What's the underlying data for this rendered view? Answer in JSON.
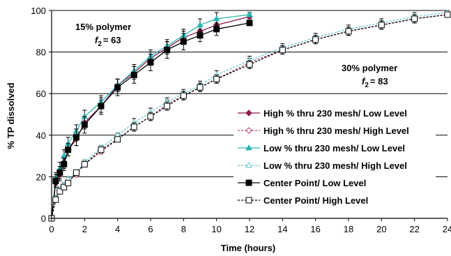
{
  "chart_data": {
    "type": "line",
    "xlabel": "Time (hours)",
    "ylabel": "% TP dissolved",
    "xlim": [
      0,
      24
    ],
    "ylim": [
      0,
      100
    ],
    "x_ticks": [
      0,
      2,
      4,
      6,
      8,
      10,
      12,
      14,
      16,
      18,
      20,
      22,
      24
    ],
    "y_ticks": [
      0,
      20,
      40,
      60,
      80,
      100
    ],
    "grid": "horizontal",
    "legend_position": "right",
    "annotations": [
      {
        "line1": "15% polymer",
        "f_sym": "f",
        "f_sub": "2",
        "f_val": "= 63"
      },
      {
        "line1": "30% polymer",
        "f_sym": "f",
        "f_sub": "2",
        "f_val": "= 83"
      }
    ],
    "series": [
      {
        "name": "High % thru 230 mesh/ Low Level",
        "color": "#8B1A4A",
        "marker": "diamond",
        "filled": true,
        "dashed": false,
        "x": [
          0,
          0.25,
          0.5,
          0.75,
          1,
          1.5,
          2,
          3,
          4,
          5,
          6,
          7,
          8,
          9,
          10,
          12
        ],
        "y": [
          0,
          17,
          21,
          27,
          33,
          38,
          46,
          54,
          64,
          70,
          77,
          82,
          87,
          90,
          93,
          97
        ],
        "err": [
          0,
          2,
          3,
          3,
          3,
          3,
          3,
          3,
          3,
          3,
          3,
          3,
          3,
          3,
          3,
          1
        ]
      },
      {
        "name": "High % thru 230 mesh/ High Level",
        "color": "#B0407A",
        "marker": "diamond",
        "filled": false,
        "dashed": true,
        "x": [
          0,
          0.25,
          0.5,
          0.75,
          1,
          1.5,
          2,
          3,
          4,
          5,
          6,
          7,
          8,
          9,
          10,
          12,
          14,
          16,
          18,
          20,
          22,
          24
        ],
        "y": [
          0,
          9,
          13,
          15,
          18,
          21,
          26,
          32,
          38,
          44,
          49,
          55,
          59,
          63,
          67,
          75,
          81,
          86,
          90,
          93,
          96,
          98
        ],
        "err": [
          0,
          1,
          1,
          1,
          1,
          1,
          1,
          1,
          1,
          2,
          2,
          2,
          2,
          2,
          2,
          2,
          2,
          2,
          2,
          2,
          2,
          1
        ]
      },
      {
        "name": "Low % thru 230 mesh/ Low Level",
        "color": "#2BB5B0",
        "marker": "triangle",
        "filled": true,
        "dashed": false,
        "x": [
          0,
          0.25,
          0.5,
          0.75,
          1,
          1.5,
          2,
          3,
          4,
          5,
          6,
          7,
          8,
          9,
          10,
          12
        ],
        "y": [
          0,
          19,
          24,
          30,
          36,
          42,
          49,
          56,
          64,
          71,
          78,
          83,
          88,
          93,
          96,
          98
        ],
        "err": [
          0,
          3,
          3,
          3,
          3,
          3,
          3,
          3,
          3,
          3,
          3,
          3,
          3,
          3,
          3,
          1
        ]
      },
      {
        "name": "Low % thru 230 mesh/ High Level",
        "color": "#5FC8D0",
        "marker": "triangle",
        "filled": false,
        "dashed": true,
        "x": [
          0,
          0.25,
          0.5,
          0.75,
          1,
          1.5,
          2,
          3,
          4,
          5,
          6,
          7,
          8,
          9,
          10,
          12,
          14,
          16,
          18,
          20,
          22,
          24
        ],
        "y": [
          0,
          10,
          14,
          16,
          19,
          22,
          27,
          34,
          40,
          46,
          51,
          56,
          60,
          64,
          69,
          76,
          82,
          87,
          91,
          94,
          97,
          99
        ],
        "err": [
          0,
          1,
          1,
          1,
          1,
          1,
          1,
          1,
          1,
          2,
          2,
          2,
          2,
          2,
          2,
          2,
          2,
          2,
          2,
          2,
          2,
          1
        ]
      },
      {
        "name": "Center Point/ Low Level",
        "color": "#000000",
        "marker": "square",
        "filled": true,
        "dashed": false,
        "x": [
          0,
          0.25,
          0.5,
          0.75,
          1,
          1.5,
          2,
          3,
          4,
          5,
          6,
          7,
          8,
          9,
          10,
          12
        ],
        "y": [
          0,
          18,
          22,
          26,
          33,
          39,
          45,
          54,
          63,
          69,
          75,
          81,
          85,
          88,
          91,
          94
        ],
        "err": [
          0,
          3,
          3,
          3,
          3,
          4,
          4,
          4,
          4,
          4,
          4,
          4,
          4,
          3,
          3,
          1
        ]
      },
      {
        "name": "Center Point/ High Level",
        "color": "#000000",
        "marker": "square",
        "filled": false,
        "dashed": true,
        "x": [
          0,
          0.25,
          0.5,
          0.75,
          1,
          1.5,
          2,
          3,
          4,
          5,
          6,
          7,
          8,
          9,
          10,
          12,
          14,
          16,
          18,
          20,
          22,
          24
        ],
        "y": [
          0,
          9,
          13,
          15,
          17,
          22,
          26,
          33,
          38,
          44,
          49,
          54,
          59,
          63,
          67,
          74,
          81,
          86,
          90,
          93,
          96,
          98
        ],
        "err": [
          0,
          1,
          1,
          1,
          1,
          1,
          1,
          1,
          1,
          2,
          2,
          2,
          2,
          2,
          2,
          2,
          2,
          2,
          2,
          2,
          2,
          1
        ]
      }
    ]
  }
}
